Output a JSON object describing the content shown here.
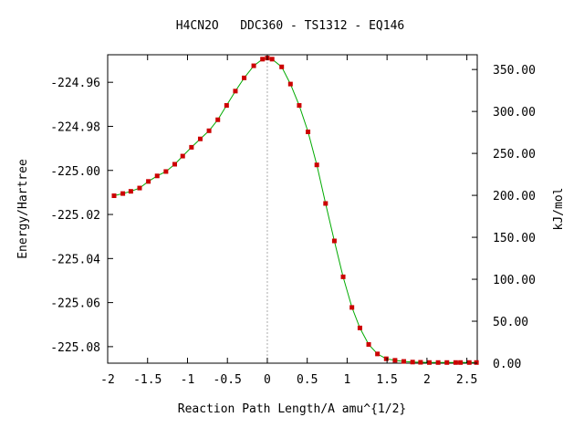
{
  "chart_data": {
    "type": "line",
    "title": "H4CN2O   DDC360 - TS1312 - EQ146",
    "xlabel": "Reaction Path Length/A amu^{1/2}",
    "ylabel": "Energy/Hartree",
    "y2label": "kJ/mol",
    "xlim": [
      -2.0,
      2.63
    ],
    "ylim": [
      -225.0875,
      -224.9475
    ],
    "xticks": [
      {
        "value": -2.0,
        "label": "-2"
      },
      {
        "value": -1.5,
        "label": "-1.5"
      },
      {
        "value": -1.0,
        "label": "-1"
      },
      {
        "value": -0.5,
        "label": "-0.5"
      },
      {
        "value": 0.0,
        "label": "0"
      },
      {
        "value": 0.5,
        "label": "0.5"
      },
      {
        "value": 1.0,
        "label": "1"
      },
      {
        "value": 1.5,
        "label": "1.5"
      },
      {
        "value": 2.0,
        "label": "2"
      },
      {
        "value": 2.5,
        "label": "2.5"
      }
    ],
    "yticks": [
      {
        "value": -224.96,
        "label": "-224.96"
      },
      {
        "value": -224.98,
        "label": "-224.98"
      },
      {
        "value": -225.0,
        "label": "-225.00"
      },
      {
        "value": -225.02,
        "label": "-225.02"
      },
      {
        "value": -225.04,
        "label": "-225.04"
      },
      {
        "value": -225.06,
        "label": "-225.06"
      },
      {
        "value": -225.08,
        "label": "-225.08"
      }
    ],
    "y2_reference_energy": -225.0875,
    "y2_conversion_kj_per_hartree": 2625.5,
    "y2ticks": [
      {
        "value": 0,
        "label": "0.00"
      },
      {
        "value": 50,
        "label": "50.00"
      },
      {
        "value": 100,
        "label": "100.00"
      },
      {
        "value": 150,
        "label": "150.00"
      },
      {
        "value": 200,
        "label": "200.00"
      },
      {
        "value": 250,
        "label": "250.00"
      },
      {
        "value": 300,
        "label": "300.00"
      },
      {
        "value": 350,
        "label": "350.00"
      }
    ],
    "ts_marker_x": 0.0,
    "colors": {
      "line": "#00aa00",
      "points": "#cc0000",
      "ts_line": "#aaaaaa",
      "axis": "#000000"
    },
    "series": [
      {
        "x": [
          -1.92,
          -1.81,
          -1.71,
          -1.6,
          -1.49,
          -1.38,
          -1.27,
          -1.16,
          -1.06,
          -0.95,
          -0.84,
          -0.73,
          -0.62,
          -0.51,
          -0.4,
          -0.29,
          -0.17,
          -0.06,
          0.0,
          0.06,
          0.18,
          0.29,
          0.4,
          0.51,
          0.62,
          0.73,
          0.84,
          0.95,
          1.06,
          1.16,
          1.27,
          1.38,
          1.49,
          1.6,
          1.71,
          1.82,
          1.92,
          2.03,
          2.14,
          2.25,
          2.36,
          2.42,
          2.53,
          2.62
        ],
        "y": [
          -225.0115,
          -225.0105,
          -225.0095,
          -225.008,
          -225.005,
          -225.0025,
          -225.0005,
          -224.9972,
          -224.9935,
          -224.9895,
          -224.9857,
          -224.982,
          -224.977,
          -224.9705,
          -224.964,
          -224.958,
          -224.9525,
          -224.9495,
          -224.949,
          -224.9495,
          -224.953,
          -224.9608,
          -224.9705,
          -224.9825,
          -224.9975,
          -225.015,
          -225.032,
          -225.0483,
          -225.0622,
          -225.0715,
          -225.079,
          -225.0833,
          -225.0855,
          -225.0862,
          -225.0867,
          -225.087,
          -225.0871,
          -225.0872,
          -225.0872,
          -225.0872,
          -225.0872,
          -225.0872,
          -225.0872,
          -225.0872
        ]
      }
    ]
  }
}
